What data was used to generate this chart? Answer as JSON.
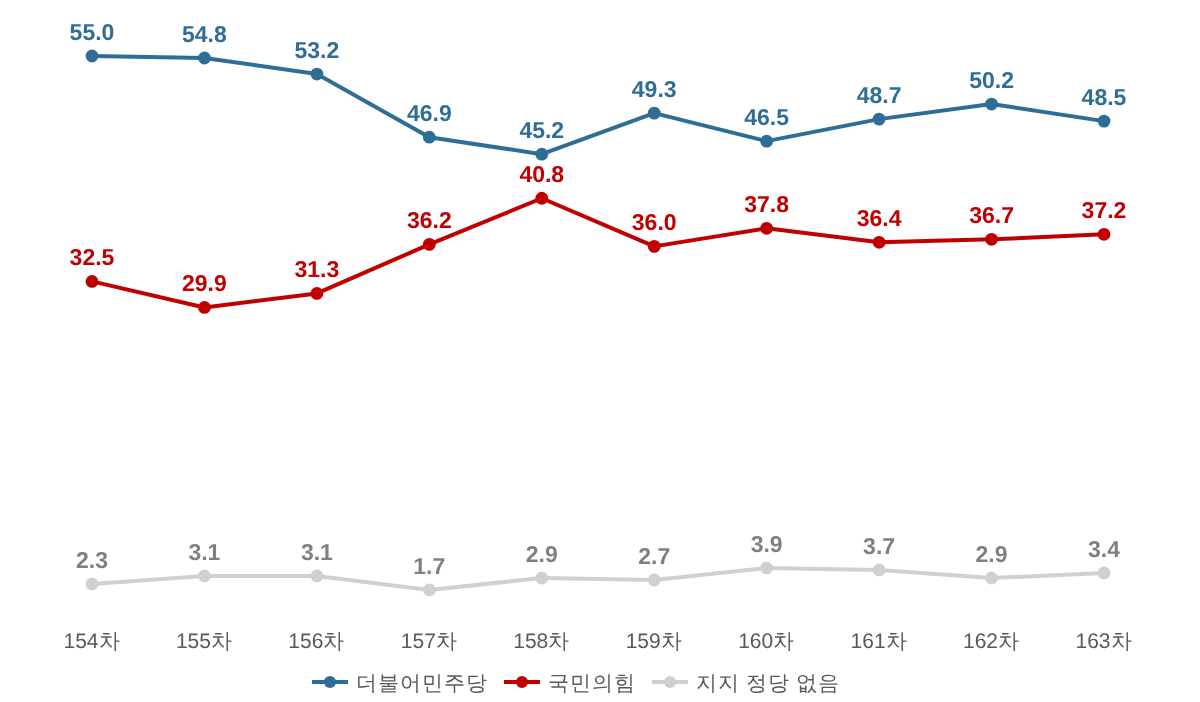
{
  "chart_data": {
    "type": "line",
    "categories": [
      "154차",
      "155차",
      "156차",
      "157차",
      "158차",
      "159차",
      "160차",
      "161차",
      "162차",
      "163차"
    ],
    "legend": "bottom",
    "marker": "circle",
    "line_style": "solid",
    "series": [
      {
        "name": "더불어민주당",
        "color": "#2e6e96",
        "values": [
          55.0,
          54.8,
          53.2,
          46.9,
          45.2,
          49.3,
          46.5,
          48.7,
          50.2,
          48.5
        ],
        "value_labels": [
          "55.0",
          "54.8",
          "53.2",
          "46.9",
          "45.2",
          "49.3",
          "46.5",
          "48.7",
          "50.2",
          "48.5"
        ]
      },
      {
        "name": "국민의힘",
        "color": "#c00000",
        "values": [
          32.5,
          29.9,
          31.3,
          36.2,
          40.8,
          36.0,
          37.8,
          36.4,
          36.7,
          37.2
        ],
        "value_labels": [
          "32.5",
          "29.9",
          "31.3",
          "36.2",
          "40.8",
          "36.0",
          "37.8",
          "36.4",
          "36.7",
          "37.2"
        ]
      },
      {
        "name": "지지 정당 없음",
        "color": "#d0d0d0",
        "values": [
          2.3,
          3.1,
          3.1,
          1.7,
          2.9,
          2.7,
          3.9,
          3.7,
          2.9,
          3.4
        ],
        "value_labels": [
          "2.3",
          "3.1",
          "3.1",
          "1.7",
          "2.9",
          "2.7",
          "3.9",
          "3.7",
          "2.9",
          "3.4"
        ]
      }
    ]
  }
}
